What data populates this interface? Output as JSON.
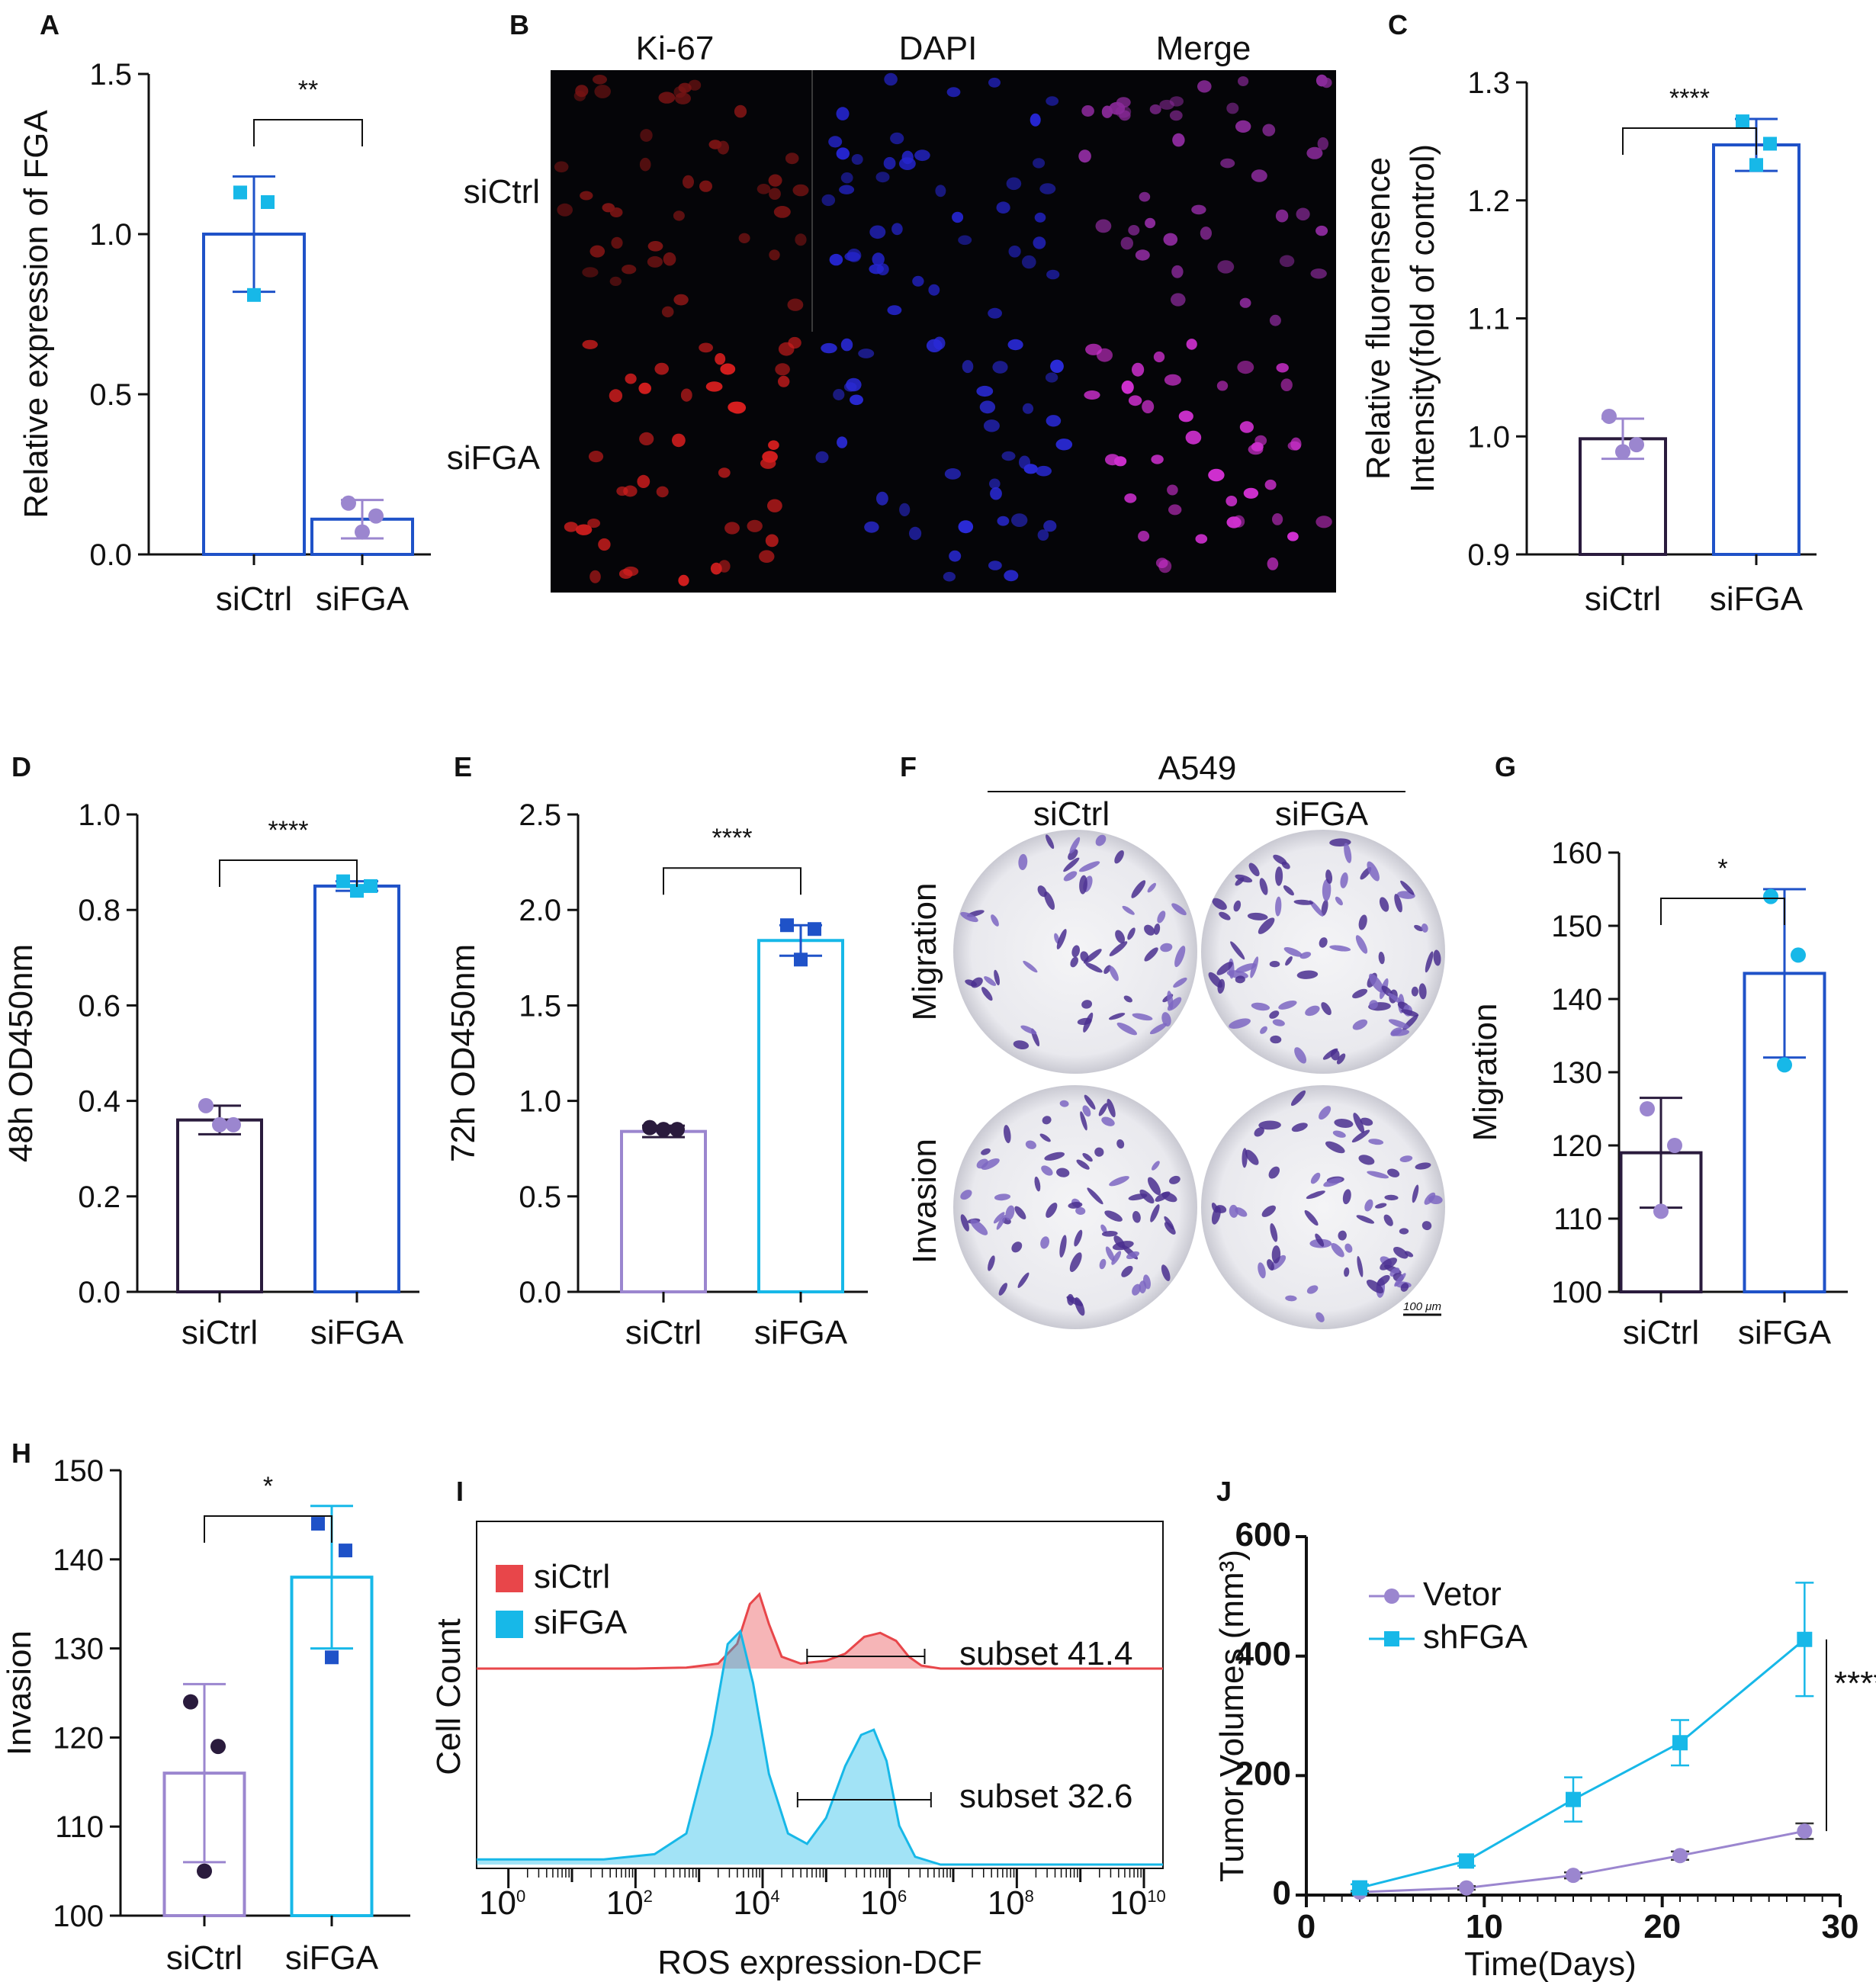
{
  "colors": {
    "blue": "#1f52c8",
    "cyan": "#17b8e8",
    "purple": "#9b86cf",
    "dark": "#2a1b3d",
    "red": "#e8464a",
    "black": "#111111"
  },
  "panel_letters": [
    "A",
    "B",
    "C",
    "D",
    "E",
    "F",
    "G",
    "H",
    "I",
    "J"
  ],
  "panelB": {
    "col_labels": [
      "Ki-67",
      "DAPI",
      "Merge"
    ],
    "row_labels": [
      "siCtrl",
      "siFGA"
    ]
  },
  "panelF": {
    "title": "A549",
    "col_labels": [
      "siCtrl",
      "siFGA"
    ],
    "row_labels": [
      "Migration",
      "Invasion"
    ],
    "scale_bar": "100 μm"
  },
  "chart_data": [
    {
      "id": "A",
      "type": "bar",
      "categories": [
        "siCtrl",
        "siFGA"
      ],
      "values": [
        1.0,
        0.11
      ],
      "error": [
        0.18,
        0.06
      ],
      "points": [
        [
          1.13,
          1.1,
          0.81
        ],
        [
          0.16,
          0.12,
          0.07
        ]
      ],
      "ylabel": "Relative expression of FGA",
      "ylim": [
        0,
        1.5
      ],
      "yticks": [
        "0.0",
        "0.5",
        "1.0",
        "1.5"
      ],
      "ytick_values": [
        0,
        0.5,
        1.0,
        1.5
      ],
      "significance": "**"
    },
    {
      "id": "C",
      "type": "bar",
      "categories": [
        "siCtrl",
        "siFGA"
      ],
      "values": [
        0.998,
        1.247
      ],
      "error": [
        0.017,
        0.022
      ],
      "points": [
        [
          1.017,
          0.993,
          0.987
        ],
        [
          1.267,
          1.248,
          1.23
        ]
      ],
      "ylabel": "Relative fluorensence Intensity(fold of control)",
      "ylabel_lines": [
        "Relative fluorensence",
        "Intensity(fold of control)"
      ],
      "ylim": [
        0.9,
        1.3
      ],
      "yticks": [
        "0.9",
        "1.0",
        "1.1",
        "1.2",
        "1.3"
      ],
      "ytick_values": [
        0.9,
        1.0,
        1.1,
        1.2,
        1.3
      ],
      "significance": "****"
    },
    {
      "id": "D",
      "type": "bar",
      "categories": [
        "siCtrl",
        "siFGA"
      ],
      "values": [
        0.36,
        0.85
      ],
      "error": [
        0.03,
        0.01
      ],
      "points": [
        [
          0.39,
          0.35,
          0.35
        ],
        [
          0.86,
          0.85,
          0.84
        ]
      ],
      "ylabel": "48h OD450nm",
      "ylim": [
        0,
        1.0
      ],
      "yticks": [
        "0.0",
        "0.2",
        "0.4",
        "0.6",
        "0.8",
        "1.0"
      ],
      "ytick_values": [
        0,
        0.2,
        0.4,
        0.6,
        0.8,
        1.0
      ],
      "significance": "****"
    },
    {
      "id": "E",
      "type": "bar",
      "categories": [
        "siCtrl",
        "siFGA"
      ],
      "values": [
        0.84,
        1.84
      ],
      "error": [
        0.03,
        0.08
      ],
      "points": [
        [
          0.86,
          0.85,
          0.85
        ],
        [
          1.92,
          1.9,
          1.74
        ]
      ],
      "ylabel": "72h OD450nm",
      "ylim": [
        0,
        2.5
      ],
      "yticks": [
        "0.0",
        "0.5",
        "1.0",
        "1.5",
        "2.0",
        "2.5"
      ],
      "ytick_values": [
        0,
        0.5,
        1.0,
        1.5,
        2.0,
        2.5
      ],
      "significance": "****"
    },
    {
      "id": "G",
      "type": "bar",
      "categories": [
        "siCtrl",
        "siFGA"
      ],
      "values": [
        119,
        143.5
      ],
      "error": [
        7.5,
        11.5
      ],
      "points": [
        [
          125,
          120,
          111
        ],
        [
          154,
          146,
          131
        ]
      ],
      "ylabel": "Migration",
      "ylim": [
        100,
        160
      ],
      "yticks": [
        "100",
        "110",
        "120",
        "130",
        "140",
        "150",
        "160"
      ],
      "ytick_values": [
        100,
        110,
        120,
        130,
        140,
        150,
        160
      ],
      "significance": "*"
    },
    {
      "id": "H",
      "type": "bar",
      "categories": [
        "siCtrl",
        "siFGA"
      ],
      "values": [
        116,
        138
      ],
      "error": [
        10,
        8
      ],
      "points": [
        [
          124,
          119,
          105
        ],
        [
          144,
          141,
          129
        ]
      ],
      "ylabel": "Invasion",
      "ylim": [
        100,
        150
      ],
      "yticks": [
        "100",
        "110",
        "120",
        "130",
        "140",
        "150"
      ],
      "ytick_values": [
        100,
        110,
        120,
        130,
        140,
        150
      ],
      "significance": "*"
    },
    {
      "id": "I",
      "type": "area",
      "title": "",
      "xlabel": "ROS expression-DCF",
      "ylabel": "Cell Count",
      "xscale": "log",
      "xlim_log10": [
        -0.5,
        10.3
      ],
      "xtick_exponents": [
        0,
        2,
        4,
        6,
        8,
        10
      ],
      "xtick_base": "10",
      "series": [
        {
          "name": "siCtrl",
          "color": "#e8464a",
          "x_log10": [
            -0.5,
            2.0,
            2.8,
            3.3,
            3.6,
            3.8,
            3.95,
            4.1,
            4.3,
            4.6,
            5.0,
            5.3,
            5.6,
            5.85,
            6.1,
            6.3,
            6.5,
            6.8,
            7.5,
            10.3
          ],
          "y": [
            0,
            0,
            0.01,
            0.05,
            0.25,
            0.65,
            0.75,
            0.45,
            0.12,
            0.05,
            0.08,
            0.15,
            0.32,
            0.36,
            0.28,
            0.12,
            0.03,
            0,
            0,
            0
          ]
        },
        {
          "name": "siFGA",
          "color": "#17b8e8",
          "x_log10": [
            -0.5,
            1.5,
            2.3,
            2.8,
            3.2,
            3.45,
            3.65,
            3.85,
            4.1,
            4.4,
            4.7,
            5.0,
            5.3,
            5.55,
            5.75,
            5.95,
            6.15,
            6.4,
            6.8,
            10.3
          ],
          "y": [
            0.02,
            0.02,
            0.04,
            0.12,
            0.5,
            0.85,
            0.9,
            0.7,
            0.35,
            0.12,
            0.08,
            0.18,
            0.38,
            0.5,
            0.52,
            0.4,
            0.15,
            0.03,
            0,
            0
          ]
        }
      ],
      "gates": [
        {
          "label": "subset",
          "value": "41.4"
        },
        {
          "label": "subset",
          "value": "32.6"
        }
      ],
      "legend": "top-left"
    },
    {
      "id": "J",
      "type": "line",
      "xlabel": "Time(Days)",
      "ylabel": "Tumor Volumes (mm³)",
      "xlim": [
        0,
        30
      ],
      "ylim": [
        0,
        600
      ],
      "xticks": [
        0,
        10,
        20,
        30
      ],
      "yticks": [
        0,
        200,
        400,
        600
      ],
      "series": [
        {
          "name": "Vetor",
          "color": "#9b86cf",
          "marker": "circle",
          "x": [
            3,
            9,
            15,
            21,
            28
          ],
          "y": [
            5,
            12,
            33,
            66,
            107
          ],
          "error": [
            2,
            3,
            5,
            7,
            13
          ]
        },
        {
          "name": "shFGA",
          "color": "#17b8e8",
          "marker": "square",
          "x": [
            3,
            9,
            15,
            21,
            28
          ],
          "y": [
            12,
            57,
            160,
            255,
            428
          ],
          "error": [
            6,
            8,
            37,
            38,
            95
          ]
        }
      ],
      "significance": "****",
      "legend": "top-left"
    }
  ]
}
